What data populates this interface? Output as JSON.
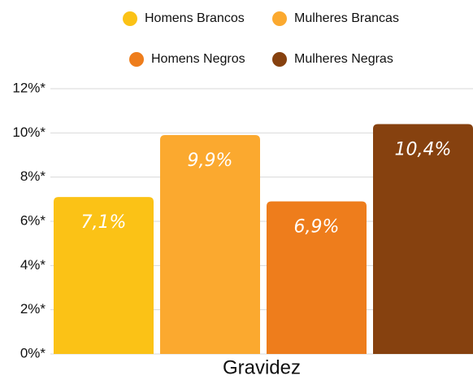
{
  "chart_data": {
    "type": "bar",
    "categories": [
      "Gravidez"
    ],
    "series": [
      {
        "name": "Homens Brancos",
        "color": "#fbc216",
        "values": [
          7.1
        ],
        "value_labels": [
          "7,1%"
        ]
      },
      {
        "name": "Mulheres Brancas",
        "color": "#fba92f",
        "values": [
          9.9
        ],
        "value_labels": [
          "9,9%"
        ]
      },
      {
        "name": "Homens Negros",
        "color": "#ee7d1c",
        "values": [
          6.9
        ],
        "value_labels": [
          "6,9%"
        ]
      },
      {
        "name": "Mulheres Negras",
        "color": "#86410f",
        "values": [
          10.4
        ],
        "value_labels": [
          "10,4%"
        ]
      }
    ],
    "ylim": [
      0,
      12
    ],
    "yticks": [
      {
        "value": 0,
        "label": "0%*"
      },
      {
        "value": 2,
        "label": "2%*"
      },
      {
        "value": 4,
        "label": "4%*"
      },
      {
        "value": 6,
        "label": "6%*"
      },
      {
        "value": 8,
        "label": "8%*"
      },
      {
        "value": 10,
        "label": "10%*"
      },
      {
        "value": 12,
        "label": "12%*"
      }
    ],
    "grid": true,
    "legend": "top"
  }
}
